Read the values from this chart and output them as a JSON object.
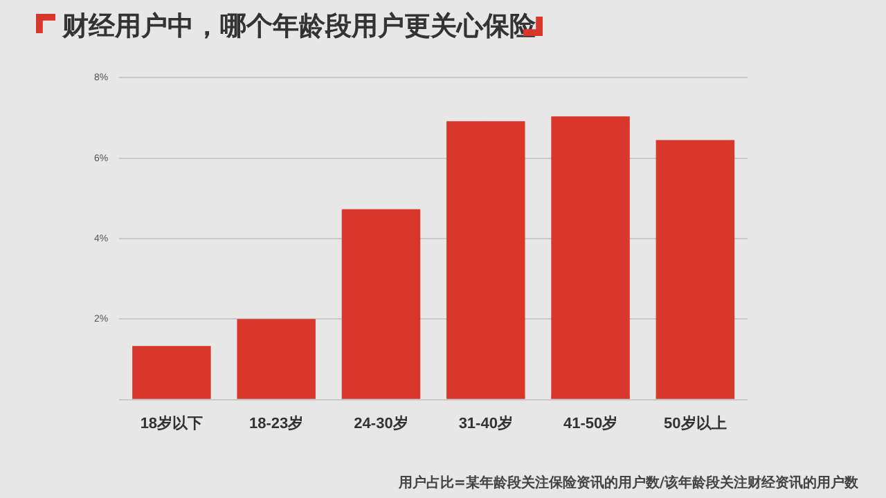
{
  "chart_data": {
    "type": "bar",
    "title": "财经用户中，哪个年龄段用户更关心保险",
    "categories": [
      "18岁以下",
      "18-23岁",
      "24-30岁",
      "31-40岁",
      "41-50岁",
      "50岁以上"
    ],
    "values": [
      1.33,
      2.0,
      4.73,
      6.92,
      7.04,
      6.45
    ],
    "color": "#d9372b",
    "ylim": [
      0,
      8
    ],
    "yticks": [
      {
        "value": 0,
        "label": null
      },
      {
        "value": 2,
        "label": "2%"
      },
      {
        "value": 4,
        "label": "4%"
      },
      {
        "value": 6,
        "label": "6%"
      },
      {
        "value": 8,
        "label": "8%"
      }
    ],
    "grid": "y",
    "annotations": [
      "用户占比=某年龄段关注保险资讯的用户数/该年龄段关注财经资讯的用户数"
    ]
  }
}
